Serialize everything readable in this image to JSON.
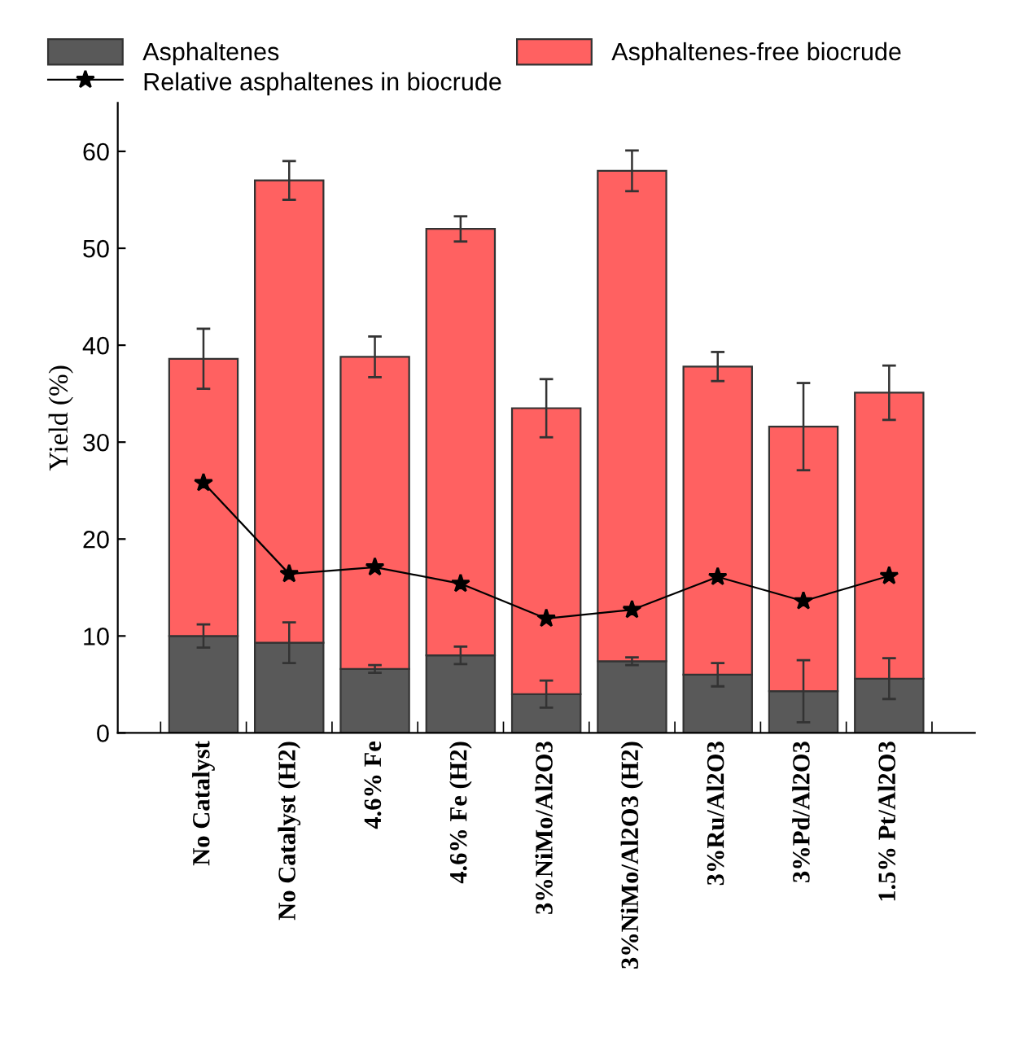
{
  "chart_data": {
    "type": "bar",
    "stacked": true,
    "ylabel": "Yield (%)",
    "categories": [
      "No Catalyst",
      "No Catalyst (H2)",
      "4.6% Fe",
      "4.6% Fe (H2)",
      "3%NiMo/Al2O3",
      "3%NiMo/Al2O3 (H2)",
      "3%Ru/Al2O3",
      "3%Pd/Al2O3",
      "1.5% Pt/Al2O3"
    ],
    "series": [
      {
        "name": "Asphaltenes",
        "color": "#595959",
        "values": [
          10,
          9.3,
          6.6,
          8,
          4,
          7.4,
          6,
          4.3,
          5.6
        ],
        "errors": [
          1.2,
          2.1,
          0.4,
          0.9,
          1.4,
          0.4,
          1.2,
          3.2,
          2.1
        ]
      },
      {
        "name": "Asphaltenes-free biocrude",
        "color": "#ff6161",
        "values": [
          28.6,
          47.7,
          32.2,
          44,
          29.5,
          50.6,
          31.8,
          27.3,
          29.5
        ],
        "errors": [
          3.1,
          2,
          2.1,
          1.3,
          3,
          2.1,
          1.5,
          4.5,
          2.8
        ]
      },
      {
        "name": "Relative asphaltenes in biocrude",
        "type": "line",
        "color": "#000000",
        "marker": "star",
        "values": [
          25.8,
          16.4,
          17.1,
          15.4,
          11.8,
          12.7,
          16.1,
          13.6,
          16.2
        ]
      }
    ],
    "ylim": [
      0,
      65
    ],
    "yticks": [
      0,
      10,
      20,
      30,
      40,
      50,
      60
    ],
    "grid": false,
    "legend": "top"
  }
}
